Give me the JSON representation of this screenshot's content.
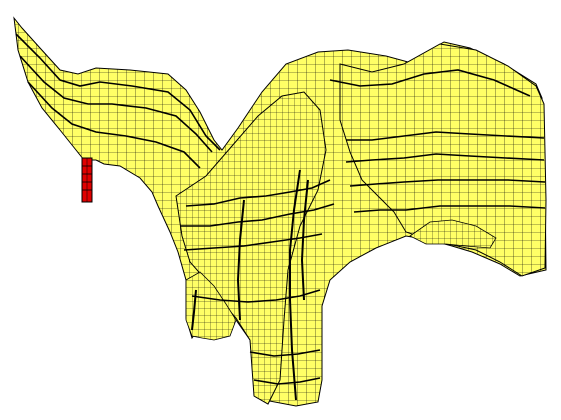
{
  "scene": {
    "background_color": "#ffffff",
    "mesh_fill_color": "#ffff66",
    "mesh_grid_color": "#000000",
    "marker_fill_color": "#e00000",
    "marker_outline_color": "#000000",
    "object_count": 2
  }
}
